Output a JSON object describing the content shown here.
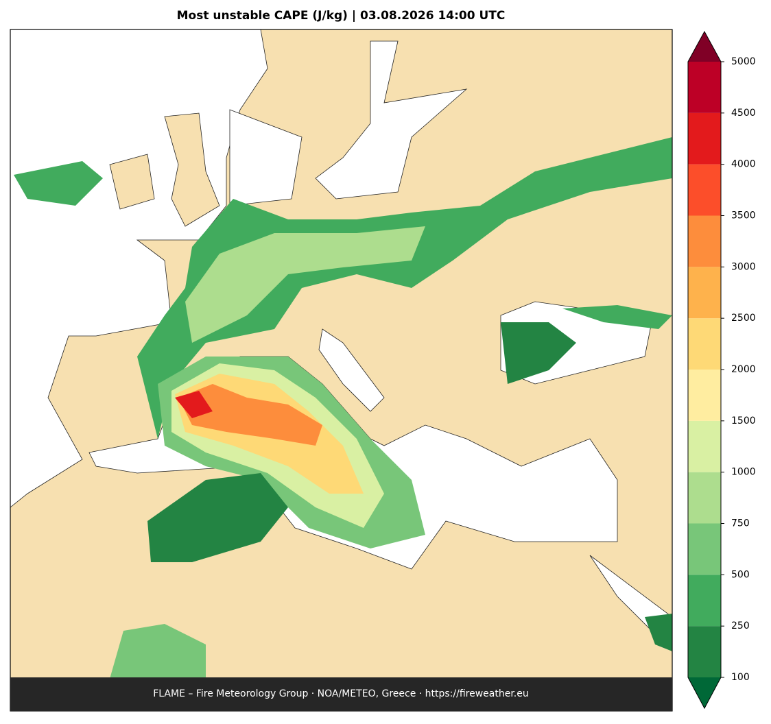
{
  "title": "Most unstable CAPE (J/kg)  |  03.08.2026 14:00 UTC",
  "footer": "FLAME – Fire Meteorology Group · NOA/METEO, Greece · https://fireweather.eu",
  "colorbar": {
    "levels": [
      100,
      250,
      500,
      750,
      1000,
      1500,
      2000,
      2500,
      3000,
      3500,
      4000,
      4500,
      5000
    ],
    "colors": [
      "#238443",
      "#41ab5d",
      "#78c679",
      "#addd8e",
      "#d9f0a3",
      "#ffeda0",
      "#fed976",
      "#feb24c",
      "#fd8d3c",
      "#fc4e2a",
      "#e31a1c",
      "#bd0026"
    ],
    "under_color": "#006837",
    "over_color": "#800026"
  }
}
